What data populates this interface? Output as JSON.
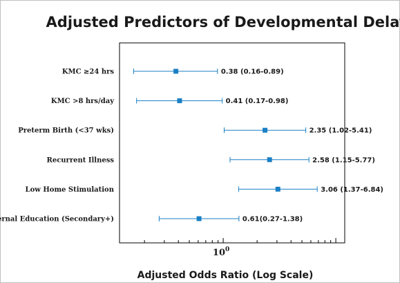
{
  "chart_data": {
    "type": "forest",
    "title": "Adjusted Predictors of Developmental Delay",
    "xlabel": "Adjusted Odds Ratio (Log Scale)",
    "ylabel": "",
    "x_scale": "log",
    "xlim": [
      0.12,
      12
    ],
    "x_ticks": [
      {
        "value": 1,
        "base": "10",
        "exponent": "0"
      }
    ],
    "grid": false,
    "colors": {
      "marker": "#1a7fc4",
      "text": "#1a1a1a",
      "axis": "#000000"
    },
    "rows": [
      {
        "label": "KMC ≥24 hrs",
        "or": 0.38,
        "ci_low": 0.16,
        "ci_high": 0.89,
        "annotation": "0.38 (0.16-0.89)"
      },
      {
        "label": "KMC >8 hrs/day",
        "or": 0.41,
        "ci_low": 0.17,
        "ci_high": 0.98,
        "annotation": "0.41 (0.17-0.98)"
      },
      {
        "label": "Preterm Birth (<37 wks)",
        "or": 2.35,
        "ci_low": 1.02,
        "ci_high": 5.41,
        "annotation": "2.35 (1.02-5.41)"
      },
      {
        "label": "Recurrent Illness",
        "or": 2.58,
        "ci_low": 1.15,
        "ci_high": 5.77,
        "annotation": "2.58 (1.15-5.77)"
      },
      {
        "label": "Low Home Stimulation",
        "or": 3.06,
        "ci_low": 1.37,
        "ci_high": 6.84,
        "annotation": "3.06 (1.37-6.84)"
      },
      {
        "label": "Maternal Education (Secondary+)",
        "or": 0.61,
        "ci_low": 0.27,
        "ci_high": 1.38,
        "annotation": "0.61(0.27-1.38)"
      }
    ]
  }
}
